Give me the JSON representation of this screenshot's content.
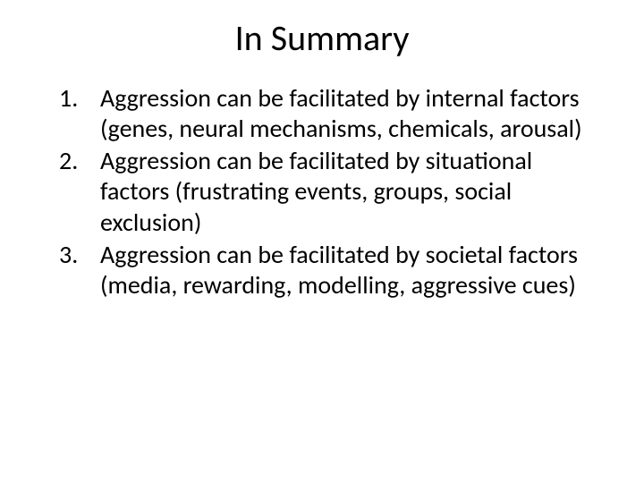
{
  "slide": {
    "title": "In Summary",
    "title_fontsize": 40,
    "body_fontsize": 28,
    "font_family": "Calibri",
    "background_color": "#ffffff",
    "text_color": "#000000",
    "list_type": "numbered",
    "items": [
      "Aggression can be facilitated by internal factors (genes, neural mechanisms, chemicals, arousal)",
      "Aggression can be facilitated by situational factors (frustrating events, groups, social exclusion)",
      "Aggression can be facilitated by societal factors (media, rewarding, modelling, aggressive cues)"
    ]
  }
}
